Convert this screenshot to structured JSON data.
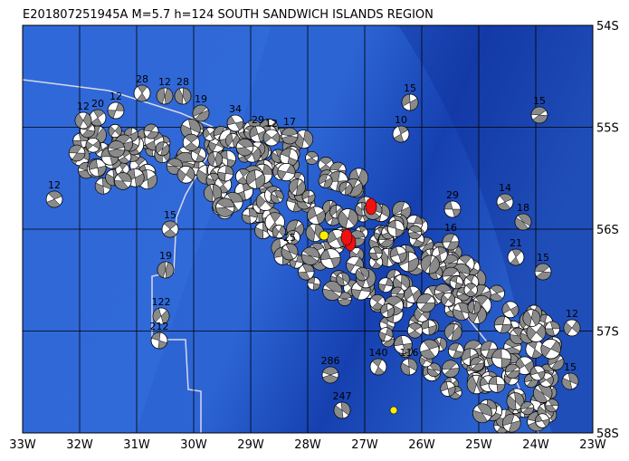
{
  "title": "E201807251945A M=5.7 h=124 SOUTH SANDWICH ISLANDS REGION",
  "x_labels": [
    "33W",
    "32W",
    "31W",
    "30W",
    "29W",
    "28W",
    "27W",
    "26W",
    "25W",
    "24W",
    "23W"
  ],
  "y_labels": [
    "54S",
    "55S",
    "56S",
    "57S",
    "58S"
  ],
  "event_labels": [
    "28",
    "12",
    "28",
    "12",
    "20",
    "12",
    "19",
    "34",
    "29",
    "12",
    "17",
    "15",
    "15",
    "10",
    "12",
    "15",
    "19",
    "122",
    "212",
    "25",
    "29",
    "14",
    "18",
    "12",
    "15",
    "286",
    "247",
    "140",
    "116",
    "16",
    "21",
    "15"
  ]
}
